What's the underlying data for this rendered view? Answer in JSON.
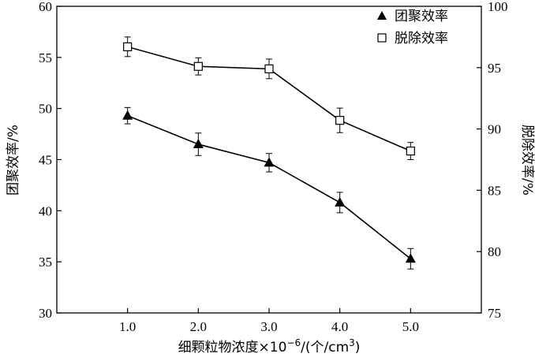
{
  "chart_data": {
    "type": "line",
    "x": [
      1.0,
      2.0,
      3.0,
      4.0,
      5.0
    ],
    "x_tick_labels": [
      "1.0",
      "2.0",
      "3.0",
      "4.0",
      "5.0"
    ],
    "xlim": [
      0.0,
      6.0
    ],
    "xlabel": {
      "text": "细颗粒物浓度×10",
      "exponent": "−6",
      "unit_prefix": "/(个/cm",
      "unit_exponent": "3",
      "unit_suffix": ")"
    },
    "y_left": {
      "label": "团聚效率/%",
      "lim": [
        30,
        60
      ],
      "ticks": [
        30,
        35,
        40,
        45,
        50,
        55,
        60
      ]
    },
    "y_right": {
      "label": "脱除效率/%",
      "lim": [
        75,
        100
      ],
      "ticks": [
        75,
        80,
        85,
        90,
        95,
        100
      ]
    },
    "grid": false,
    "legend_position": "top-right",
    "series": [
      {
        "name": "团聚效率",
        "axis": "left",
        "marker": "filled-triangle",
        "color": "#000000",
        "values": [
          49.3,
          46.5,
          44.7,
          40.8,
          35.3
        ],
        "errors": [
          0.8,
          1.1,
          0.9,
          1.0,
          1.0
        ]
      },
      {
        "name": "脱除效率",
        "axis": "right",
        "marker": "open-square",
        "color": "#000000",
        "values": [
          96.7,
          95.1,
          94.9,
          90.7,
          88.2
        ],
        "errors": [
          0.8,
          0.7,
          0.8,
          1.0,
          0.7
        ]
      }
    ]
  }
}
